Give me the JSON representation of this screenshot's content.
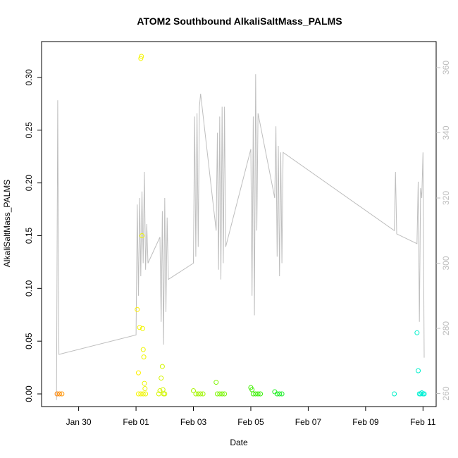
{
  "chart_data": {
    "type": "scatter",
    "title": "ATOM2 Southbound AlkaliSaltMass_PALMS",
    "xlabel": "Date",
    "ylabel": "AlkaliSaltMass_PALMS",
    "x_type": "date",
    "xlim": [
      "2017-01-28T17:00",
      "2017-02-11T11:00"
    ],
    "ylim": [
      -0.012,
      0.334
    ],
    "y2lim": [
      256,
      368
    ],
    "x_ticks": [
      "Jan 30",
      "Feb 01",
      "Feb 03",
      "Feb 05",
      "Feb 07",
      "Feb 09",
      "Feb 11"
    ],
    "y_ticks": [
      "0.00",
      "0.05",
      "0.10",
      "0.15",
      "0.20",
      "0.25",
      "0.30"
    ],
    "y2_ticks": [
      "260",
      "280",
      "300",
      "320",
      "340",
      "360"
    ],
    "y2_tick_color": "#bdbdbd",
    "line_color": "#bebebe",
    "grid": false,
    "legend": "none",
    "points": [
      {
        "x": "2017-01-29T06:00",
        "y": 0.0,
        "color": "#ff7f00"
      },
      {
        "x": "2017-01-29T08:00",
        "y": 0.0,
        "color": "#ff8a00"
      },
      {
        "x": "2017-01-29T10:00",
        "y": 0.0,
        "color": "#ff9500"
      },
      {
        "x": "2017-02-01T01:00",
        "y": 0.08,
        "color": "#ffee00"
      },
      {
        "x": "2017-02-01T02:00",
        "y": 0.02,
        "color": "#fff000"
      },
      {
        "x": "2017-02-01T03:00",
        "y": 0.063,
        "color": "#f8f500"
      },
      {
        "x": "2017-02-01T04:00",
        "y": 0.318,
        "color": "#f5f500"
      },
      {
        "x": "2017-02-01T04:30",
        "y": 0.32,
        "color": "#f5f500"
      },
      {
        "x": "2017-02-01T05:00",
        "y": 0.15,
        "color": "#f0f500"
      },
      {
        "x": "2017-02-01T05:30",
        "y": 0.062,
        "color": "#f0f500"
      },
      {
        "x": "2017-02-01T06:00",
        "y": 0.042,
        "color": "#eef500"
      },
      {
        "x": "2017-02-01T06:30",
        "y": 0.035,
        "color": "#eef500"
      },
      {
        "x": "2017-02-01T07:00",
        "y": 0.01,
        "color": "#ecf500"
      },
      {
        "x": "2017-02-01T07:30",
        "y": 0.005,
        "color": "#ecf500"
      },
      {
        "x": "2017-02-01T02:00",
        "y": 0.0,
        "color": "#f8f500"
      },
      {
        "x": "2017-02-01T04:00",
        "y": 0.0,
        "color": "#f5f500"
      },
      {
        "x": "2017-02-01T06:00",
        "y": 0.0,
        "color": "#eef500"
      },
      {
        "x": "2017-02-01T08:00",
        "y": 0.0,
        "color": "#eaf500"
      },
      {
        "x": "2017-02-01T19:00",
        "y": 0.0,
        "color": "#d8f500"
      },
      {
        "x": "2017-02-01T20:00",
        "y": 0.003,
        "color": "#d8f500"
      },
      {
        "x": "2017-02-01T21:00",
        "y": 0.015,
        "color": "#d5f500"
      },
      {
        "x": "2017-02-01T22:00",
        "y": 0.026,
        "color": "#d2f500"
      },
      {
        "x": "2017-02-01T22:30",
        "y": 0.004,
        "color": "#d2f500"
      },
      {
        "x": "2017-02-01T23:00",
        "y": 0.0,
        "color": "#d0f500"
      },
      {
        "x": "2017-02-02T00:00",
        "y": 0.0,
        "color": "#cef500"
      },
      {
        "x": "2017-02-03T00:00",
        "y": 0.003,
        "color": "#a8f500"
      },
      {
        "x": "2017-02-03T02:00",
        "y": 0.0,
        "color": "#a5f500"
      },
      {
        "x": "2017-02-03T04:00",
        "y": 0.0,
        "color": "#a2f500"
      },
      {
        "x": "2017-02-03T06:00",
        "y": 0.0,
        "color": "#a0f500"
      },
      {
        "x": "2017-02-03T08:00",
        "y": 0.0,
        "color": "#9ef500"
      },
      {
        "x": "2017-02-03T19:00",
        "y": 0.011,
        "color": "#7ff500"
      },
      {
        "x": "2017-02-03T20:00",
        "y": 0.0,
        "color": "#7df500"
      },
      {
        "x": "2017-02-03T22:00",
        "y": 0.0,
        "color": "#7af500"
      },
      {
        "x": "2017-02-04T00:00",
        "y": 0.0,
        "color": "#78f500"
      },
      {
        "x": "2017-02-04T02:00",
        "y": 0.0,
        "color": "#75f500"
      },
      {
        "x": "2017-02-05T00:00",
        "y": 0.006,
        "color": "#40f000"
      },
      {
        "x": "2017-02-05T01:00",
        "y": 0.004,
        "color": "#3ef000"
      },
      {
        "x": "2017-02-05T02:00",
        "y": 0.0,
        "color": "#3cf000"
      },
      {
        "x": "2017-02-05T04:00",
        "y": 0.0,
        "color": "#38f000"
      },
      {
        "x": "2017-02-05T06:00",
        "y": 0.0,
        "color": "#35f000"
      },
      {
        "x": "2017-02-05T08:00",
        "y": 0.0,
        "color": "#32f000"
      },
      {
        "x": "2017-02-05T20:00",
        "y": 0.002,
        "color": "#20ee20"
      },
      {
        "x": "2017-02-05T22:00",
        "y": 0.0,
        "color": "#1eee22"
      },
      {
        "x": "2017-02-06T00:00",
        "y": 0.0,
        "color": "#1cee25"
      },
      {
        "x": "2017-02-06T02:00",
        "y": 0.0,
        "color": "#1aee28"
      },
      {
        "x": "2017-02-10T00:00",
        "y": 0.0,
        "color": "#00f0c8"
      },
      {
        "x": "2017-02-10T19:00",
        "y": 0.058,
        "color": "#00f0cc"
      },
      {
        "x": "2017-02-10T20:00",
        "y": 0.022,
        "color": "#00f0cc"
      },
      {
        "x": "2017-02-10T21:00",
        "y": 0.0,
        "color": "#00f0d0"
      },
      {
        "x": "2017-02-10T22:00",
        "y": 0.0,
        "color": "#00f0d0"
      },
      {
        "x": "2017-02-10T23:00",
        "y": 0.001,
        "color": "#00f0d2"
      },
      {
        "x": "2017-02-11T00:00",
        "y": 0.0,
        "color": "#00f0d5"
      },
      {
        "x": "2017-02-11T01:00",
        "y": 0.0,
        "color": "#00f0d8"
      }
    ],
    "altitude_series": {
      "axis": "right",
      "points": [
        [
          "2017-01-29T05:30",
          258
        ],
        [
          "2017-01-29T06:30",
          350
        ],
        [
          "2017-01-29T07:30",
          272
        ],
        [
          "2017-02-01T00:00",
          278
        ],
        [
          "2017-02-01T01:00",
          318
        ],
        [
          "2017-02-01T02:00",
          290
        ],
        [
          "2017-02-01T03:00",
          320
        ],
        [
          "2017-02-01T04:00",
          296
        ],
        [
          "2017-02-01T05:00",
          322
        ],
        [
          "2017-02-01T06:00",
          300
        ],
        [
          "2017-02-01T07:00",
          328
        ],
        [
          "2017-02-01T08:00",
          298
        ],
        [
          "2017-02-01T09:00",
          312
        ],
        [
          "2017-02-01T10:00",
          300
        ],
        [
          "2017-02-01T20:00",
          308
        ],
        [
          "2017-02-01T21:00",
          282
        ],
        [
          "2017-02-01T22:00",
          316
        ],
        [
          "2017-02-01T23:00",
          275
        ],
        [
          "2017-02-02T00:00",
          320
        ],
        [
          "2017-02-02T01:00",
          285
        ],
        [
          "2017-02-02T02:00",
          314
        ],
        [
          "2017-02-02T03:00",
          295
        ],
        [
          "2017-02-03T00:00",
          300
        ],
        [
          "2017-02-03T01:00",
          345
        ],
        [
          "2017-02-03T02:00",
          302
        ],
        [
          "2017-02-03T03:00",
          346
        ],
        [
          "2017-02-03T04:00",
          305
        ],
        [
          "2017-02-03T05:00",
          348
        ],
        [
          "2017-02-03T06:00",
          352
        ],
        [
          "2017-02-03T19:00",
          310
        ],
        [
          "2017-02-03T20:00",
          340
        ],
        [
          "2017-02-03T21:00",
          298
        ],
        [
          "2017-02-03T22:00",
          345
        ],
        [
          "2017-02-03T23:00",
          295
        ],
        [
          "2017-02-04T00:00",
          348
        ],
        [
          "2017-02-04T01:00",
          300
        ],
        [
          "2017-02-04T02:00",
          348
        ],
        [
          "2017-02-04T03:00",
          305
        ],
        [
          "2017-02-05T00:00",
          335
        ],
        [
          "2017-02-05T01:00",
          290
        ],
        [
          "2017-02-05T02:00",
          345
        ],
        [
          "2017-02-05T03:00",
          284
        ],
        [
          "2017-02-05T04:00",
          358
        ],
        [
          "2017-02-05T05:00",
          310
        ],
        [
          "2017-02-05T06:00",
          346
        ],
        [
          "2017-02-05T20:00",
          320
        ],
        [
          "2017-02-05T21:00",
          342
        ],
        [
          "2017-02-05T22:00",
          302
        ],
        [
          "2017-02-05T23:00",
          336
        ],
        [
          "2017-02-06T00:00",
          296
        ],
        [
          "2017-02-06T01:00",
          334
        ],
        [
          "2017-02-06T02:00",
          300
        ],
        [
          "2017-02-06T03:00",
          334
        ],
        [
          "2017-02-10T00:00",
          310
        ],
        [
          "2017-02-10T01:00",
          328
        ],
        [
          "2017-02-10T02:00",
          309
        ],
        [
          "2017-02-10T19:00",
          306
        ],
        [
          "2017-02-10T20:00",
          325
        ],
        [
          "2017-02-10T21:00",
          282
        ],
        [
          "2017-02-10T22:00",
          323
        ],
        [
          "2017-02-10T23:00",
          320
        ],
        [
          "2017-02-11T00:00",
          334
        ],
        [
          "2017-02-11T01:00",
          271
        ]
      ]
    }
  }
}
